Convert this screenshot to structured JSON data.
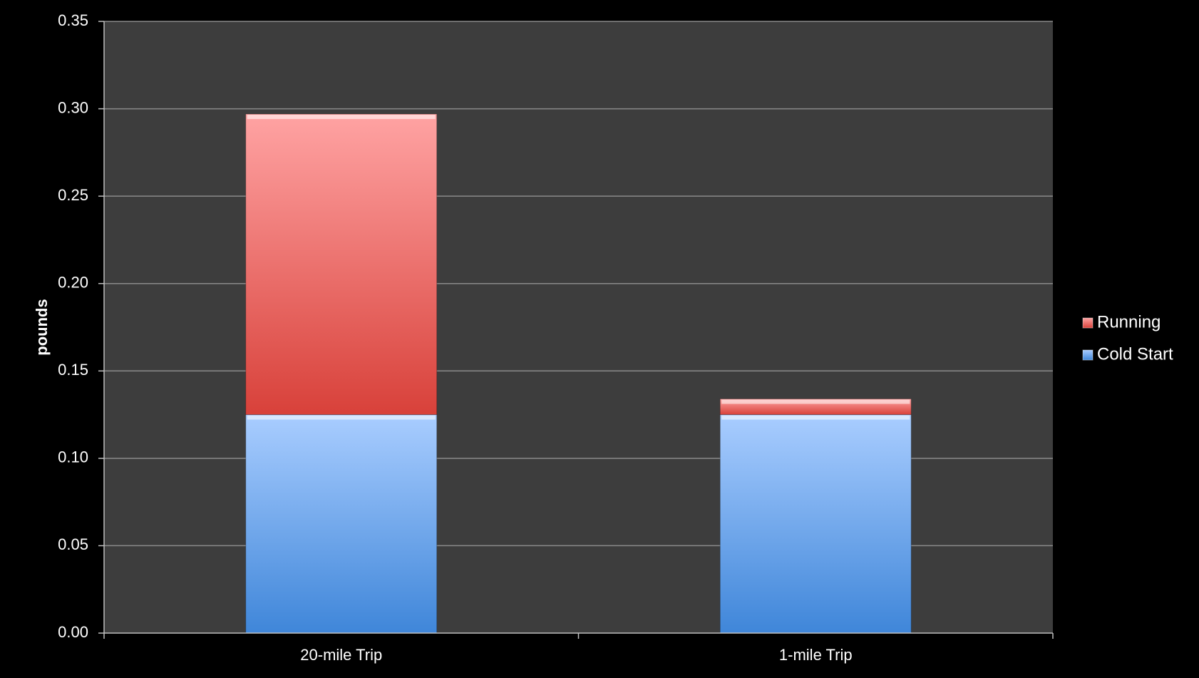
{
  "chart_data": {
    "type": "bar",
    "stacked": true,
    "title": "",
    "xlabel": "",
    "ylabel": "pounds",
    "categories": [
      "20-mile Trip",
      "1-mile Trip"
    ],
    "series": [
      {
        "name": "Cold Start",
        "values": [
          0.125,
          0.125
        ],
        "color_top": "#a9cdff",
        "color_bottom": "#3f86d9"
      },
      {
        "name": "Running",
        "values": [
          0.172,
          0.009
        ],
        "color_top": "#ffa3a3",
        "color_bottom": "#d8413a"
      }
    ],
    "ylim": [
      0,
      0.35
    ],
    "yticks": [
      "0.00",
      "0.05",
      "0.10",
      "0.15",
      "0.20",
      "0.25",
      "0.30",
      "0.35"
    ],
    "grid": true,
    "legend_position": "right",
    "legend_order": [
      "Running",
      "Cold Start"
    ],
    "colors": {
      "background": "#000000",
      "plot_background": "#3d3d3d",
      "grid": "#8a8a8a",
      "text": "#ffffff"
    }
  }
}
